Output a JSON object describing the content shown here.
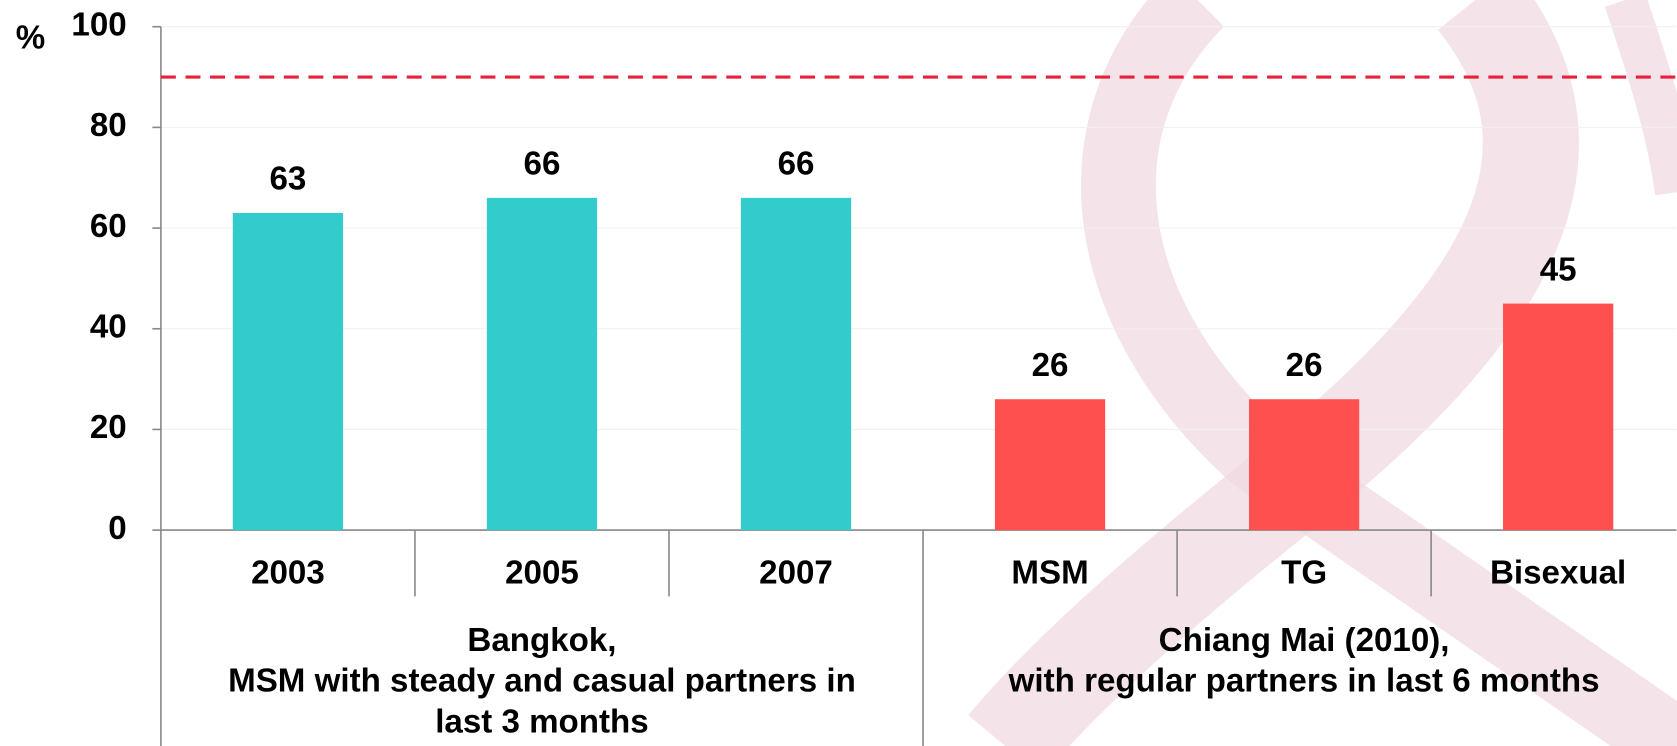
{
  "chart_data": {
    "type": "bar",
    "y_label": "%",
    "ylim": [
      0,
      100
    ],
    "yticks": [
      0,
      20,
      40,
      60,
      80,
      100
    ],
    "grid": true,
    "reference_line": {
      "value": 90,
      "color": "#e8203a"
    },
    "groups": [
      {
        "label": [
          "Bangkok,",
          "MSM with steady and casual partners in",
          "last 3 months"
        ],
        "categories": [
          "2003",
          "2005",
          "2007"
        ],
        "values": [
          63,
          66,
          66
        ],
        "color": "#33cccc"
      },
      {
        "label": [
          "Chiang Mai (2010),",
          "with regular partners in last 6 months"
        ],
        "categories": [
          "MSM",
          "TG",
          "Bisexual"
        ],
        "values": [
          26,
          26,
          45
        ],
        "color": "#ff5050"
      }
    ]
  }
}
